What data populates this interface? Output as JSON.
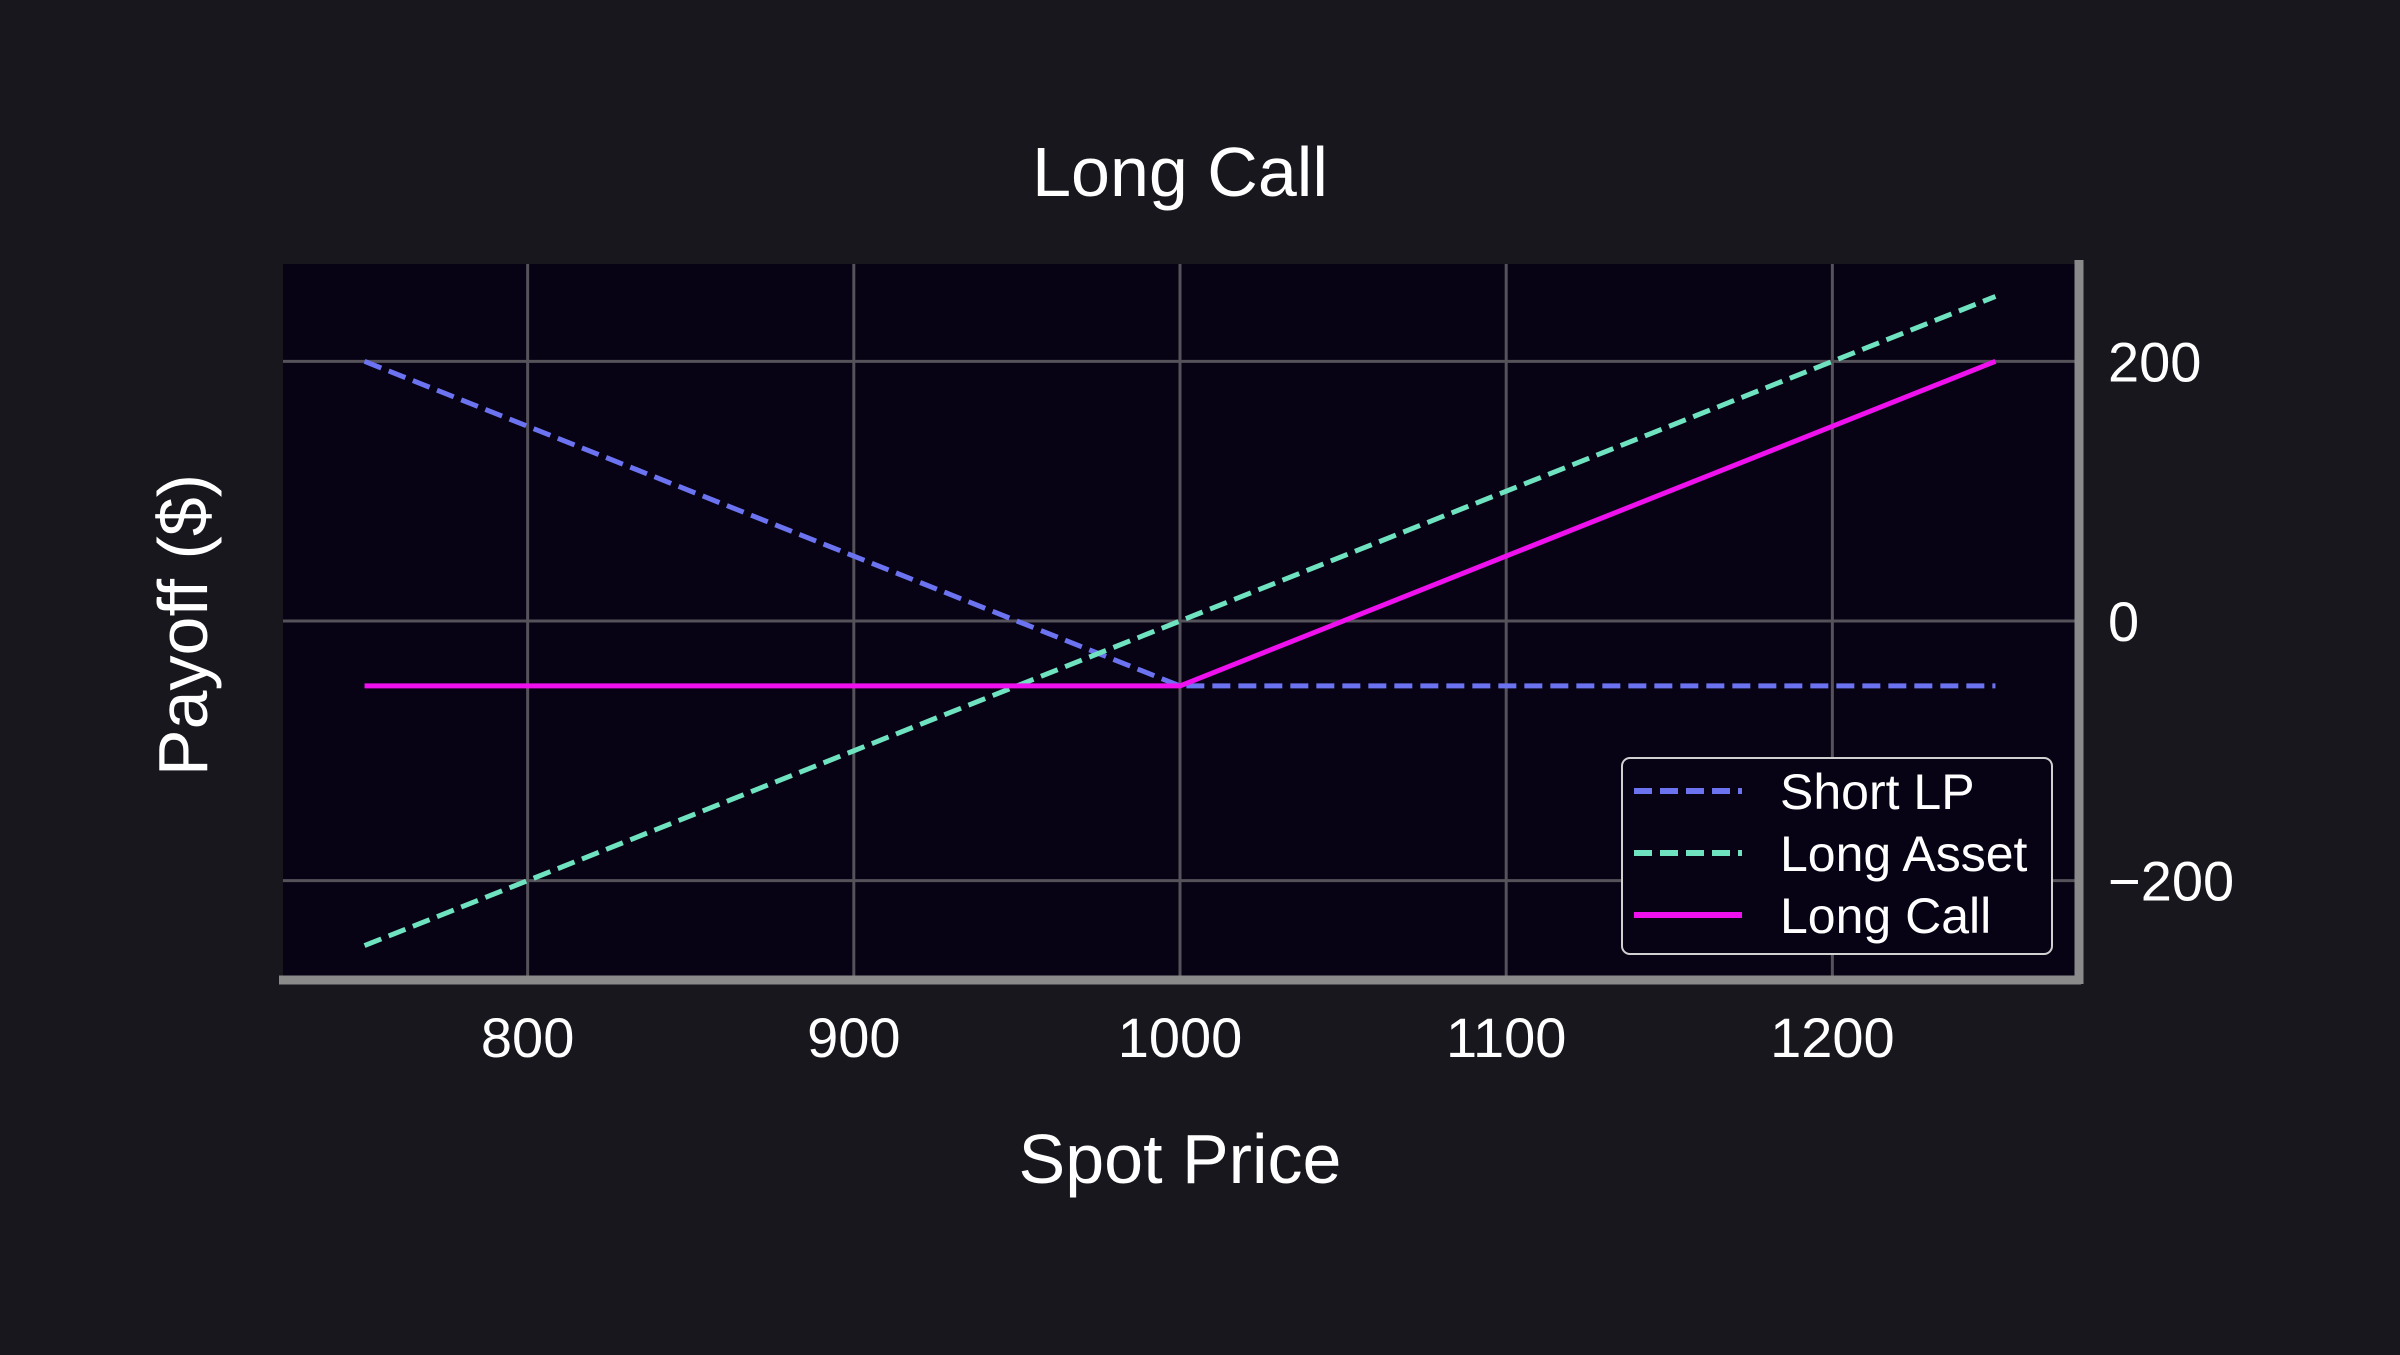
{
  "chart_data": {
    "type": "line",
    "title": "Long Call",
    "xlabel": "Spot Price",
    "ylabel": "Payoff ($)",
    "xlim": [
      725,
      1275
    ],
    "ylim": [
      -275,
      275
    ],
    "xticks": [
      800,
      900,
      1000,
      1100,
      1200
    ],
    "yticks": [
      200,
      0,
      -200
    ],
    "xtick_labels": [
      "800",
      "900",
      "1000",
      "1100",
      "1200"
    ],
    "ytick_labels": [
      "200",
      "0",
      "−200"
    ],
    "y_axis_side": "right",
    "grid": true,
    "legend_position": "lower-right",
    "series": [
      {
        "name": "Short LP",
        "color": "#6b73f0",
        "style": "dashed",
        "x": [
          750,
          1000,
          1250
        ],
        "y": [
          200,
          -50,
          -50
        ]
      },
      {
        "name": "Long Asset",
        "color": "#6fe3c0",
        "style": "dashed",
        "x": [
          750,
          1000,
          1250
        ],
        "y": [
          -250,
          0,
          250
        ]
      },
      {
        "name": "Long Call",
        "color": "#ee11ee",
        "style": "solid",
        "x": [
          750,
          1000,
          1250
        ],
        "y": [
          -50,
          -50,
          200
        ]
      }
    ],
    "colors": {
      "background": "#18171d",
      "plot_background": "#070214",
      "grid": "#55525a",
      "spine": "#8a8a8a",
      "text": "#ffffff"
    }
  }
}
